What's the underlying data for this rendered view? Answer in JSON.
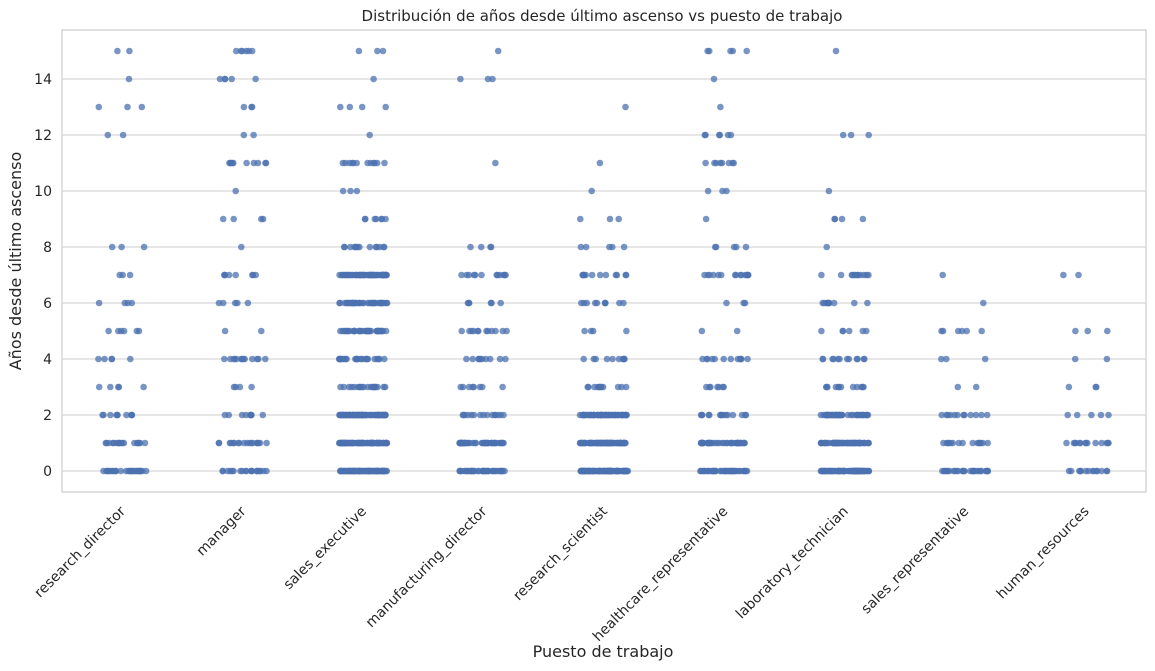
{
  "chart_data": {
    "type": "scatter",
    "style": "strip",
    "title": "Distribución de años desde último ascenso vs puesto de trabajo",
    "xlabel": "Puesto de trabajo",
    "ylabel": "Años desde último ascenso",
    "ylim": [
      -0.75,
      15.75
    ],
    "yticks": [
      0,
      2,
      4,
      6,
      8,
      10,
      12,
      14
    ],
    "grid": "y",
    "point_color": "#4c72b0",
    "categories": [
      "research_director",
      "manager",
      "sales_executive",
      "manufacturing_director",
      "research_scientist",
      "healthcare_representative",
      "laboratory_technician",
      "sales_representative",
      "human_resources"
    ],
    "series": [
      {
        "category": "research_director",
        "values": {
          "0": 28,
          "1": 18,
          "2": 10,
          "3": 5,
          "4": 5,
          "5": 6,
          "6": 4,
          "7": 3,
          "8": 3,
          "12": 2,
          "13": 3,
          "14": 1,
          "15": 2
        }
      },
      {
        "category": "manager",
        "values": {
          "0": 20,
          "1": 18,
          "2": 9,
          "3": 4,
          "4": 13,
          "5": 2,
          "6": 5,
          "7": 8,
          "8": 1,
          "9": 4,
          "10": 1,
          "11": 10,
          "12": 2,
          "13": 3,
          "14": 5,
          "15": 6
        }
      },
      {
        "category": "sales_executive",
        "values": {
          "0": 90,
          "1": 90,
          "2": 80,
          "3": 20,
          "4": 25,
          "5": 40,
          "6": 40,
          "7": 60,
          "8": 14,
          "9": 7,
          "10": 3,
          "11": 12,
          "12": 1,
          "13": 4,
          "14": 1,
          "15": 3
        }
      },
      {
        "category": "manufacturing_director",
        "values": {
          "0": 45,
          "1": 50,
          "2": 15,
          "3": 8,
          "4": 10,
          "5": 12,
          "6": 6,
          "7": 12,
          "8": 4,
          "11": 1,
          "14": 3,
          "15": 1
        }
      },
      {
        "category": "research_scientist",
        "values": {
          "0": 100,
          "1": 90,
          "2": 60,
          "3": 12,
          "4": 10,
          "5": 4,
          "6": 10,
          "7": 12,
          "8": 5,
          "9": 3,
          "10": 1,
          "11": 1,
          "13": 1
        }
      },
      {
        "category": "healthcare_representative",
        "values": {
          "0": 45,
          "1": 45,
          "2": 15,
          "3": 7,
          "4": 12,
          "5": 2,
          "6": 3,
          "7": 15,
          "8": 5,
          "9": 1,
          "10": 3,
          "11": 8,
          "12": 6,
          "13": 1,
          "14": 1,
          "15": 5
        }
      },
      {
        "category": "laboratory_technician",
        "values": {
          "0": 85,
          "1": 70,
          "2": 45,
          "3": 12,
          "4": 12,
          "5": 6,
          "6": 10,
          "7": 12,
          "8": 1,
          "9": 4,
          "10": 1,
          "12": 3,
          "15": 1
        }
      },
      {
        "category": "sales_representative",
        "values": {
          "0": 30,
          "1": 15,
          "2": 12,
          "3": 2,
          "4": 3,
          "5": 6,
          "6": 1,
          "7": 1
        }
      },
      {
        "category": "human_resources",
        "values": {
          "0": 14,
          "1": 14,
          "2": 5,
          "3": 3,
          "4": 2,
          "5": 3,
          "7": 2
        }
      }
    ]
  }
}
